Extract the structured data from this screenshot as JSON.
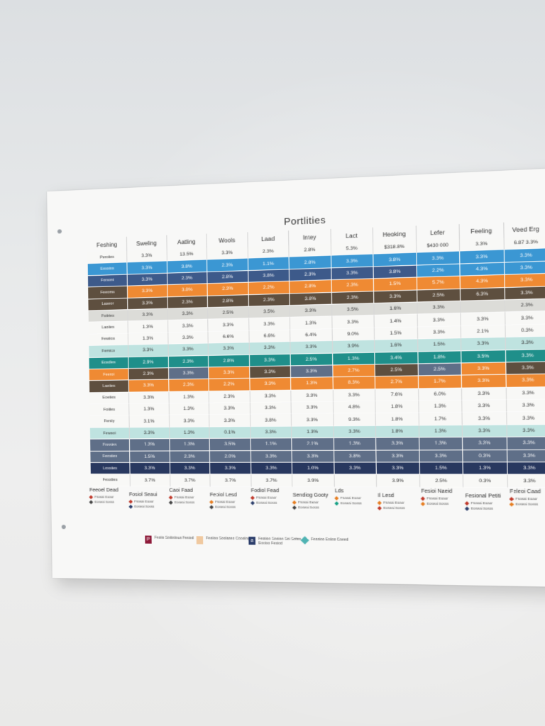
{
  "poster": {
    "title": "Portlities",
    "header": [
      "Feshing",
      "Sweling",
      "Aatling",
      "Wools",
      "Laad",
      "Intey",
      "Lact",
      "Heoking",
      "Lefer",
      "Feeling",
      "Veed Erg"
    ],
    "header_sub": [
      "$318.8%",
      "$430 000",
      "3.3%",
      "6.87 3.3%"
    ],
    "rows": [
      {
        "label": "Peroiies",
        "tone": "plain",
        "cells": [
          "3.3%",
          "13.5%",
          "3.3%",
          "2.3%",
          "2.8%",
          "5.3%",
          "$318.8%",
          "$430 000",
          "3.3%",
          "6.87 3.3%"
        ]
      },
      {
        "label": "Eossios",
        "tone": "blue",
        "cells": [
          "3.3%",
          "3.8%",
          "2.3%",
          "1.1%",
          "2.8%",
          "3.3%",
          "3.8%",
          "3.3%",
          "3.3%",
          "3.3%"
        ]
      },
      {
        "label": "Forsoni",
        "tone": "navy",
        "cells": [
          "3.3%",
          "2.3%",
          "2.8%",
          "3.8%",
          "2.3%",
          "3.3%",
          "3.8%",
          "2.2%",
          "4.3%",
          "3.3%"
        ]
      },
      {
        "label": "Feeoms",
        "tone": "orange",
        "cells": [
          "3.3%",
          "3.8%",
          "2.3%",
          "2.2%",
          "2.8%",
          "2.3%",
          "1.5%",
          "5.7%",
          "4.3%",
          "3.3%"
        ]
      },
      {
        "label": "Laseor",
        "tone": "brown",
        "cells": [
          "3.3%",
          "2.3%",
          "2.8%",
          "2.3%",
          "3.8%",
          "2.3%",
          "3.3%",
          "2.5%",
          "6.3%",
          "3.3%"
        ]
      },
      {
        "label": "Foiiries",
        "tone": "grey",
        "cells": [
          "3.3%",
          "3.3%",
          "2.5%",
          "3.5%",
          "3.3%",
          "3.5%",
          "1.6%",
          "3.3%",
          "",
          "2.3%"
        ]
      },
      {
        "label": "Laoiies",
        "tone": "plain",
        "cells": [
          "1.3%",
          "3.3%",
          "3.3%",
          "3.3%",
          "1.3%",
          "3.3%",
          "1.4%",
          "3.3%",
          "3.3%",
          "3.3%"
        ]
      },
      {
        "label": "Fewiios",
        "tone": "plain",
        "cells": [
          "1.3%",
          "3.3%",
          "6.6%",
          "6.6%",
          "6.4%",
          "9.0%",
          "1.5%",
          "3.3%",
          "2.1%",
          "0.3%"
        ]
      },
      {
        "label": "Femico",
        "tone": "lightteal",
        "cells": [
          "3.3%",
          "3.3%",
          "3.3%",
          "3.3%",
          "3.3%",
          "3.9%",
          "1.6%",
          "1.5%",
          "3.3%",
          "3.3%"
        ]
      },
      {
        "label": "Eosdies",
        "tone": "teal",
        "cells": [
          "2.9%",
          "2.3%",
          "2.8%",
          "3.3%",
          "2.5%",
          "1.3%",
          "3.4%",
          "1.8%",
          "3.5%",
          "3.3%"
        ]
      },
      {
        "label": "Feeroi",
        "tone": "mixed",
        "cells": [
          "2.3%",
          "3.3%",
          "3.3%",
          "3.3%",
          "3.3%",
          "2.7%",
          "2.5%",
          "2.5%",
          "3.3%",
          "3.3%"
        ]
      },
      {
        "label": "Laeiies",
        "tone": "orange",
        "cells": [
          "3.3%",
          "2.3%",
          "2.2%",
          "3.3%",
          "1.3%",
          "8.3%",
          "2.7%",
          "1.7%",
          "3.3%",
          "3.3%"
        ]
      },
      {
        "label": "Eoeiies",
        "tone": "plain",
        "cells": [
          "3.3%",
          "1.3%",
          "2.3%",
          "3.3%",
          "3.3%",
          "3.3%",
          "7.6%",
          "6.0%",
          "3.3%",
          "3.3%"
        ]
      },
      {
        "label": "Foiiles",
        "tone": "plain",
        "cells": [
          "1.3%",
          "1.3%",
          "3.3%",
          "3.3%",
          "3.3%",
          "4.8%",
          "1.8%",
          "1.3%",
          "3.3%",
          "3.3%"
        ]
      },
      {
        "label": "Feniiy",
        "tone": "plain",
        "cells": [
          "3.1%",
          "3.3%",
          "3.3%",
          "3.8%",
          "3.3%",
          "9.3%",
          "1.8%",
          "1.7%",
          "3.3%",
          "3.3%"
        ]
      },
      {
        "label": "Fewsoi",
        "tone": "lightteal",
        "cells": [
          "3.3%",
          "1.3%",
          "0.1%",
          "3.3%",
          "1.3%",
          "3.3%",
          "1.8%",
          "1.3%",
          "3.3%",
          "3.3%"
        ]
      },
      {
        "label": "Eossies",
        "tone": "slate",
        "cells": [
          "1.3%",
          "1.3%",
          "3.5%",
          "1.1%",
          "2.1%",
          "1.3%",
          "3.3%",
          "1.3%",
          "3.3%",
          "3.3%"
        ]
      },
      {
        "label": "Feosiies",
        "tone": "slate",
        "cells": [
          "1.5%",
          "2.3%",
          "2.0%",
          "3.3%",
          "3.3%",
          "3.8%",
          "3.3%",
          "3.3%",
          "0.3%",
          "3.3%"
        ]
      },
      {
        "label": "Lossiies",
        "tone": "darknavy",
        "cells": [
          "3.3%",
          "3.3%",
          "3.3%",
          "3.3%",
          "1.0%",
          "3.3%",
          "3.3%",
          "1.5%",
          "1.3%",
          "3.3%"
        ]
      },
      {
        "label": "Fessties",
        "tone": "plain",
        "cells": [
          "3.7%",
          "3.7%",
          "3.7%",
          "3.7%",
          "3.9%",
          "",
          "3.9%",
          "2.5%",
          "0.3%",
          "3.3%"
        ]
      }
    ],
    "legend": [
      {
        "title": "Feeoel Dead",
        "items": [
          {
            "text": "Fnasai Eoaor",
            "color": "#c0392b"
          },
          {
            "text": "Eoseai Sosss",
            "color": "#444"
          }
        ]
      },
      {
        "title": "Fosiol Seaui",
        "items": [
          {
            "text": "Fnasai Eoaor",
            "color": "#c0392b"
          },
          {
            "text": "Eoseai Sosss",
            "color": "#2c3e6b"
          }
        ]
      },
      {
        "title": "Caoi Faad",
        "items": [
          {
            "text": "Fnasai Eoaor",
            "color": "#c0392b"
          },
          {
            "text": "Eoseai Sosss",
            "color": "#444"
          }
        ]
      },
      {
        "title": "Feoiol Lesd",
        "items": [
          {
            "text": "Fnasai Eoaor",
            "color": "#e67e22"
          },
          {
            "text": "Eoseai Sosss",
            "color": "#444"
          }
        ]
      },
      {
        "title": "Fodiol Fead",
        "items": [
          {
            "text": "Fnasai Eoaor",
            "color": "#c0392b"
          },
          {
            "text": "Eoseai Sosss",
            "color": "#2c3e6b"
          }
        ]
      },
      {
        "title": "Sendiog Gooty",
        "items": [
          {
            "text": "Fnasai Eoaor",
            "color": "#e67e22"
          },
          {
            "text": "Eoseai Sosss",
            "color": "#444"
          }
        ]
      },
      {
        "title": "Lds",
        "items": [
          {
            "text": "Fnasai Eoaor",
            "color": "#e67e22"
          },
          {
            "text": "Eoseai Sosss",
            "color": "#16a085"
          }
        ]
      },
      {
        "title": "Il Lesd",
        "items": [
          {
            "text": "Fnasai Eoaor",
            "color": "#e67e22"
          },
          {
            "text": "Eoseai Sosss",
            "color": "#c0392b"
          }
        ]
      },
      {
        "title": "Fesioi Naeid",
        "items": [
          {
            "text": "Fnasai Eoaor",
            "color": "#c0392b"
          },
          {
            "text": "Eoseai Sosss",
            "color": "#e67e22"
          }
        ]
      },
      {
        "title": "Fesional Petiti",
        "items": [
          {
            "text": "Fnasai Eoaor",
            "color": "#c0392b"
          },
          {
            "text": "Eoseai Sosss",
            "color": "#2c3e6b"
          }
        ]
      },
      {
        "title": "Feleoi Caad",
        "items": [
          {
            "text": "Fnasai Eoaor",
            "color": "#c0392b"
          },
          {
            "text": "Eoseai Sosss",
            "color": "#e67e22"
          }
        ]
      }
    ],
    "keys": [
      {
        "glyph": "P",
        "color": "#8e1b3a",
        "text": "Fesiio Soiiisiious Fesiod"
      },
      {
        "glyph": "",
        "color": "#f0c9a0",
        "text": "Fesiioo Soolases Coosiing"
      },
      {
        "glyph": "a",
        "color": "#2c3e6b",
        "text": "Fesiioo Sooioo Soi Sotes Eooiso Fesiod"
      },
      {
        "glyph": "",
        "color": "#4fb3b3",
        "text": "Fessioo Esiios Coeed"
      }
    ]
  },
  "colors": {
    "blue": "#3b97d3",
    "navy": "#3d5a8a",
    "orange": "#ef8a33",
    "brown": "#5e4f3f",
    "teal": "#1f8f8a",
    "lightteal": "#bfe3e0",
    "slate": "#5f6f88",
    "darknavy": "#28385f",
    "grey": "#dcdcd8",
    "plain": "#f8f8f6"
  }
}
